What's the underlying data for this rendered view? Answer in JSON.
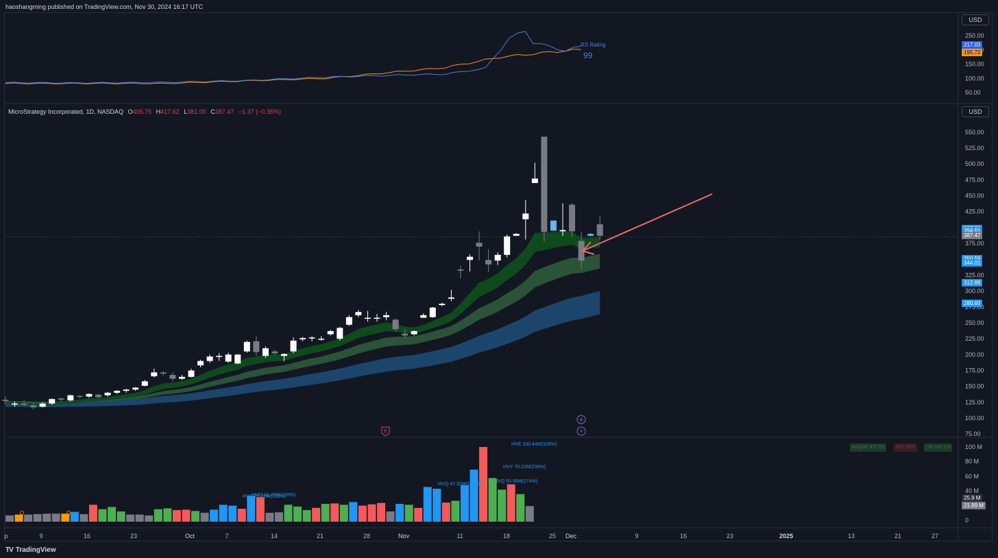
{
  "header": {
    "published": "haoshangming published on TradingView.com, Nov 30, 2024 16:17 UTC"
  },
  "rs_panel": {
    "currency": "USD",
    "rs_label": "RS Rating",
    "rs_value": "99",
    "ticks": [
      "250.00",
      "200.00",
      "150.00",
      "100.00",
      "50.00"
    ],
    "price_tag_blue": "217.03",
    "price_tag_orange": "195.72"
  },
  "main_panel": {
    "currency": "USD",
    "symbol": "MicroStrategy Incorporated, 1D, NASDAQ",
    "ohlc": {
      "o_label": "O",
      "o": "405.75",
      "h_label": "H",
      "h": "417.62",
      "l_label": "L",
      "l": "381.00",
      "c_label": "C",
      "c": "387.47",
      "change": "−1.37 (−0.35%)"
    },
    "ticks": [
      "550.00",
      "525.00",
      "500.00",
      "475.00",
      "450.00",
      "425.00",
      "375.00",
      "325.00",
      "300.00",
      "275.00",
      "250.00",
      "225.00",
      "200.00",
      "175.00",
      "150.00",
      "125.00",
      "100.00",
      "75.00"
    ],
    "tags": [
      {
        "text": "397.70",
        "color": "#2196f3"
      },
      {
        "text": "394.61",
        "color": "#2196f3"
      },
      {
        "text": "387.47",
        "color": "#787b86"
      },
      {
        "text": "350.59",
        "color": "#2196f3"
      },
      {
        "text": "344.01",
        "color": "#2196f3"
      },
      {
        "text": "312.99",
        "color": "#2196f3"
      },
      {
        "text": "280.60",
        "color": "#2196f3"
      }
    ],
    "earnings_marker": "E"
  },
  "volume_panel": {
    "ticks": [
      "100 M",
      "80 M",
      "60 M",
      "40 M",
      "0"
    ],
    "tag_25": "25.9 M",
    "tag_21": "21.99 M",
    "stat_boxes": [
      "AvgVol: 837.00",
      "Rel: 68%",
      "UD Vol: 1.6"
    ],
    "annotations": [
      {
        "text": "HVE 100.44M(328%)"
      },
      {
        "text": "HVY 70.21M(236%)"
      },
      {
        "text": "HVQ 50.95M(174%)"
      },
      {
        "text": "HVQ 47.32M(180%)"
      },
      {
        "text": "HVQ 31.76M(155%)"
      },
      {
        "text": "HVQ 26.05M(133%)"
      }
    ],
    "q_markers": [
      "Q",
      "Q"
    ]
  },
  "time_axis": {
    "labels": [
      "p",
      "9",
      "16",
      "23",
      "Oct",
      "7",
      "14",
      "21",
      "28",
      "Nov",
      "11",
      "18",
      "25",
      "Dec",
      "9",
      "16",
      "23",
      "2025",
      "13",
      "21",
      "27"
    ]
  },
  "footer": {
    "logo": "TV",
    "brand": "TradingView"
  },
  "colors": {
    "background": "#131722",
    "up_candle": "#ffffff",
    "down_candle": "#787b86",
    "highlight_candle": "#64b5f6",
    "vol_up": "#4caf50",
    "vol_down": "#f65959",
    "vol_blue": "#2196f3",
    "vol_gray": "#787b86",
    "vol_orange": "#ff9800",
    "ema_band_fast": "#0e4d1b",
    "ema_band_mid": "#2e5a3a",
    "ema_band_slow": "#1f4e79",
    "rs_line": "#4a7fd4",
    "rs_ma": "#f7931a",
    "arrow": "#f06a6a"
  },
  "chart_data": {
    "type": "candlestick",
    "symbol": "MicroStrategy Incorporated",
    "interval": "1D",
    "ylim": [
      75,
      560
    ],
    "candles": [
      [
        129,
        134,
        122,
        127
      ],
      [
        122,
        126,
        118,
        123
      ],
      [
        123,
        128,
        119,
        121
      ],
      [
        120,
        124,
        114,
        117
      ],
      [
        118,
        125,
        117,
        123
      ],
      [
        123,
        131,
        121,
        130
      ],
      [
        131,
        132,
        126,
        129
      ],
      [
        128,
        137,
        126,
        136
      ],
      [
        135,
        136,
        131,
        134
      ],
      [
        134,
        139,
        132,
        138
      ],
      [
        137,
        138,
        131,
        133
      ],
      [
        136,
        141,
        134,
        140
      ],
      [
        140,
        144,
        138,
        143
      ],
      [
        143,
        146,
        140,
        145
      ],
      [
        145,
        149,
        143,
        148
      ],
      [
        151,
        160,
        150,
        158
      ],
      [
        166,
        178,
        164,
        172
      ],
      [
        172,
        174,
        167,
        170
      ],
      [
        168,
        172,
        158,
        162
      ],
      [
        162,
        168,
        160,
        165
      ],
      [
        165,
        178,
        164,
        175
      ],
      [
        183,
        192,
        180,
        190
      ],
      [
        190,
        200,
        187,
        197
      ],
      [
        197,
        202,
        190,
        198
      ],
      [
        189,
        203,
        187,
        200
      ],
      [
        186,
        201,
        185,
        200
      ],
      [
        205,
        222,
        203,
        220
      ],
      [
        221,
        229,
        198,
        204
      ],
      [
        198,
        213,
        195,
        210
      ],
      [
        205,
        208,
        200,
        202
      ],
      [
        198,
        202,
        190,
        201
      ],
      [
        205,
        227,
        202,
        222
      ],
      [
        224,
        228,
        221,
        226
      ],
      [
        226,
        229,
        221,
        227
      ],
      [
        225,
        229,
        222,
        225
      ],
      [
        232,
        239,
        230,
        237
      ],
      [
        225,
        244,
        222,
        242
      ],
      [
        247,
        262,
        245,
        259
      ],
      [
        262,
        270,
        259,
        267
      ],
      [
        258,
        269,
        252,
        258
      ],
      [
        257,
        264,
        252,
        258
      ],
      [
        259,
        267,
        254,
        262
      ],
      [
        255,
        257,
        236,
        240
      ],
      [
        233,
        240,
        226,
        230
      ],
      [
        232,
        238,
        230,
        237
      ],
      [
        258,
        265,
        258,
        262
      ],
      [
        259,
        275,
        258,
        274
      ],
      [
        278,
        282,
        276,
        280
      ],
      [
        288,
        302,
        284,
        290
      ],
      [
        334,
        340,
        320,
        332
      ],
      [
        349,
        358,
        331,
        354
      ],
      [
        376,
        394,
        348,
        370
      ],
      [
        349,
        366,
        330,
        342
      ],
      [
        348,
        361,
        341,
        357
      ],
      [
        357,
        389,
        353,
        386
      ],
      [
        387,
        391,
        387,
        390
      ],
      [
        413,
        443,
        381,
        422
      ],
      [
        470,
        502,
        470,
        477
      ],
      [
        543,
        543,
        378,
        393
      ],
      [
        411,
        410,
        397,
        395
      ],
      [
        394,
        438,
        387,
        396
      ],
      [
        436,
        438,
        385,
        394
      ],
      [
        379,
        393,
        335,
        348
      ],
      [
        390,
        391,
        386,
        387
      ],
      [
        405,
        418,
        381,
        387
      ]
    ],
    "rs_line": [
      [
        0,
        85
      ],
      [
        10,
        84
      ],
      [
        20,
        86
      ],
      [
        30,
        92
      ],
      [
        40,
        104
      ],
      [
        50,
        112
      ],
      [
        55,
        115
      ],
      [
        60,
        135
      ],
      [
        63,
        240
      ],
      [
        65,
        268
      ],
      [
        66,
        225
      ],
      [
        68,
        212
      ],
      [
        70,
        197
      ],
      [
        72,
        213
      ]
    ],
    "rs_ma": [
      [
        0,
        82
      ],
      [
        20,
        82
      ],
      [
        40,
        100
      ],
      [
        55,
        138
      ],
      [
        62,
        175
      ],
      [
        70,
        197
      ],
      [
        72,
        201
      ]
    ],
    "volume": [
      [
        14,
        "gray"
      ],
      [
        16,
        "orange"
      ],
      [
        16,
        "gray"
      ],
      [
        17,
        "gray"
      ],
      [
        18,
        "gray"
      ],
      [
        18,
        "gray"
      ],
      [
        18,
        "orange"
      ],
      [
        22,
        "blue"
      ],
      [
        17,
        "gray"
      ],
      [
        38,
        "red"
      ],
      [
        28,
        "green"
      ],
      [
        33,
        "green"
      ],
      [
        23,
        "green"
      ],
      [
        16,
        "gray"
      ],
      [
        16,
        "gray"
      ],
      [
        14,
        "gray"
      ],
      [
        28,
        "green"
      ],
      [
        30,
        "green"
      ],
      [
        26,
        "red"
      ],
      [
        27,
        "red"
      ],
      [
        24,
        "green"
      ],
      [
        20,
        "gray"
      ],
      [
        27,
        "blue"
      ],
      [
        38,
        "blue"
      ],
      [
        36,
        "blue"
      ],
      [
        29,
        "red"
      ],
      [
        58,
        "blue"
      ],
      [
        55,
        "red"
      ],
      [
        20,
        "gray"
      ],
      [
        21,
        "gray"
      ],
      [
        38,
        "green"
      ],
      [
        34,
        "green"
      ],
      [
        26,
        "green"
      ],
      [
        31,
        "red"
      ],
      [
        40,
        "green"
      ],
      [
        41,
        "red"
      ],
      [
        38,
        "green"
      ],
      [
        44,
        "blue"
      ],
      [
        36,
        "red"
      ],
      [
        39,
        "red"
      ],
      [
        42,
        "red"
      ],
      [
        23,
        "gray"
      ],
      [
        40,
        "blue"
      ],
      [
        38,
        "green"
      ],
      [
        31,
        "red"
      ],
      [
        78,
        "blue"
      ],
      [
        74,
        "blue"
      ],
      [
        43,
        "red"
      ],
      [
        47,
        "green"
      ],
      [
        82,
        "blue"
      ],
      [
        117,
        "blue"
      ],
      [
        168,
        "red"
      ],
      [
        98,
        "green"
      ],
      [
        72,
        "green"
      ],
      [
        84,
        "red"
      ],
      [
        62,
        "green"
      ],
      [
        35,
        "gray"
      ]
    ]
  }
}
